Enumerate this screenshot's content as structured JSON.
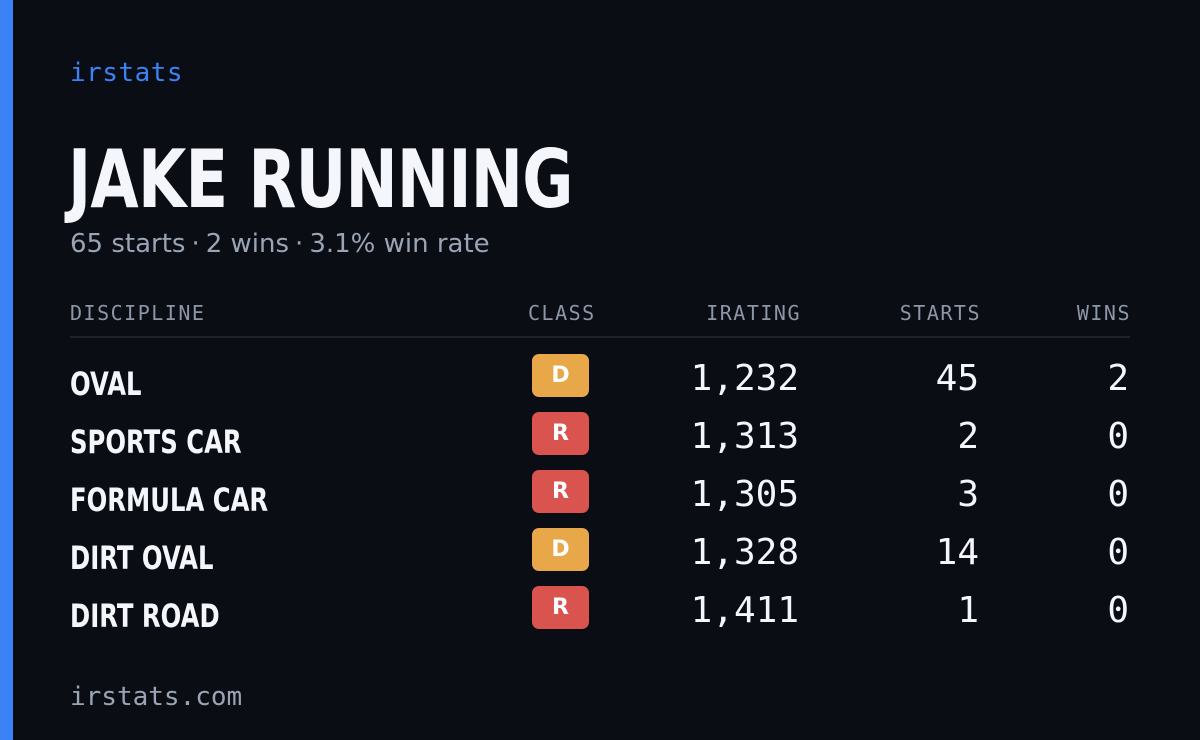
{
  "brand": "irstats",
  "player": {
    "name": "JAKE RUNNING",
    "summary": [
      "65 starts",
      "2 wins",
      "3.1% win rate"
    ],
    "separator": "·"
  },
  "table": {
    "headers": {
      "discipline": "DISCIPLINE",
      "class": "CLASS",
      "irating": "IRATING",
      "starts": "STARTS",
      "wins": "WINS"
    },
    "rows": [
      {
        "discipline": "OVAL",
        "class": "D",
        "irating": "1,232",
        "starts": "45",
        "wins": "2"
      },
      {
        "discipline": "SPORTS CAR",
        "class": "R",
        "irating": "1,313",
        "starts": "2",
        "wins": "0"
      },
      {
        "discipline": "FORMULA CAR",
        "class": "R",
        "irating": "1,305",
        "starts": "3",
        "wins": "0"
      },
      {
        "discipline": "DIRT OVAL",
        "class": "D",
        "irating": "1,328",
        "starts": "14",
        "wins": "0"
      },
      {
        "discipline": "DIRT ROAD",
        "class": "R",
        "irating": "1,411",
        "starts": "1",
        "wins": "0"
      }
    ]
  },
  "class_colors": {
    "D": "#e8a84a",
    "R": "#d9534f"
  },
  "colors": {
    "accent": "#3b82f6",
    "background": "#0a0d14"
  },
  "footer": "irstats.com"
}
